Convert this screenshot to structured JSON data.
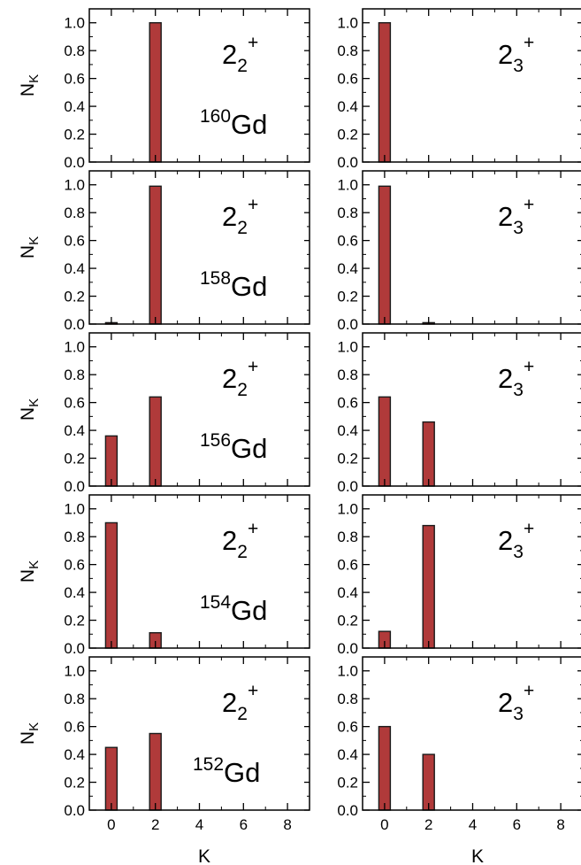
{
  "figure": {
    "ylabel_main": "N",
    "ylabel_sub": "K",
    "xlabel": "K"
  },
  "style": {
    "bar_color": "#b03a3a",
    "bar_stroke": "#1a1a1a"
  },
  "chart_data": [
    {
      "type": "bar",
      "row": 0,
      "col": 0,
      "state_main": "2",
      "state_sub": "2",
      "state_sup": "+",
      "nucleus_mass": "160",
      "nucleus_symbol": "Gd",
      "x": [
        0,
        2
      ],
      "values": [
        0.0,
        1.0
      ],
      "xlim": [
        -1,
        9
      ],
      "ylim": [
        0,
        1.1
      ],
      "xticks": [
        "0",
        "2",
        "4",
        "6",
        "8"
      ],
      "yticks": [
        "0.0",
        "0.2",
        "0.4",
        "0.6",
        "0.8",
        "1.0"
      ]
    },
    {
      "type": "bar",
      "row": 0,
      "col": 1,
      "state_main": "2",
      "state_sub": "3",
      "state_sup": "+",
      "nucleus_mass": "",
      "nucleus_symbol": "",
      "x": [
        0,
        2
      ],
      "values": [
        1.0,
        0.0
      ],
      "xlim": [
        -1,
        9
      ],
      "ylim": [
        0,
        1.1
      ],
      "xticks": [
        "0",
        "2",
        "4",
        "6",
        "8"
      ],
      "yticks": [
        "0.0",
        "0.2",
        "0.4",
        "0.6",
        "0.8",
        "1.0"
      ]
    },
    {
      "type": "bar",
      "row": 1,
      "col": 0,
      "state_main": "2",
      "state_sub": "2",
      "state_sup": "+",
      "nucleus_mass": "158",
      "nucleus_symbol": "Gd",
      "x": [
        0,
        2
      ],
      "values": [
        0.01,
        0.99
      ],
      "xlim": [
        -1,
        9
      ],
      "ylim": [
        0,
        1.1
      ],
      "xticks": [
        "0",
        "2",
        "4",
        "6",
        "8"
      ],
      "yticks": [
        "0.0",
        "0.2",
        "0.4",
        "0.6",
        "0.8",
        "1.0"
      ]
    },
    {
      "type": "bar",
      "row": 1,
      "col": 1,
      "state_main": "2",
      "state_sub": "3",
      "state_sup": "+",
      "nucleus_mass": "",
      "nucleus_symbol": "",
      "x": [
        0,
        2
      ],
      "values": [
        0.99,
        0.01
      ],
      "xlim": [
        -1,
        9
      ],
      "ylim": [
        0,
        1.1
      ],
      "xticks": [
        "0",
        "2",
        "4",
        "6",
        "8"
      ],
      "yticks": [
        "0.0",
        "0.2",
        "0.4",
        "0.6",
        "0.8",
        "1.0"
      ]
    },
    {
      "type": "bar",
      "row": 2,
      "col": 0,
      "state_main": "2",
      "state_sub": "2",
      "state_sup": "+",
      "nucleus_mass": "156",
      "nucleus_symbol": "Gd",
      "x": [
        0,
        2
      ],
      "values": [
        0.36,
        0.64
      ],
      "xlim": [
        -1,
        9
      ],
      "ylim": [
        0,
        1.1
      ],
      "xticks": [
        "0",
        "2",
        "4",
        "6",
        "8"
      ],
      "yticks": [
        "0.0",
        "0.2",
        "0.4",
        "0.6",
        "0.8",
        "1.0"
      ]
    },
    {
      "type": "bar",
      "row": 2,
      "col": 1,
      "state_main": "2",
      "state_sub": "3",
      "state_sup": "+",
      "nucleus_mass": "",
      "nucleus_symbol": "",
      "x": [
        0,
        2
      ],
      "values": [
        0.64,
        0.46
      ],
      "xlim": [
        -1,
        9
      ],
      "ylim": [
        0,
        1.1
      ],
      "xticks": [
        "0",
        "2",
        "4",
        "6",
        "8"
      ],
      "yticks": [
        "0.0",
        "0.2",
        "0.4",
        "0.6",
        "0.8",
        "1.0"
      ]
    },
    {
      "type": "bar",
      "row": 3,
      "col": 0,
      "state_main": "2",
      "state_sub": "2",
      "state_sup": "+",
      "nucleus_mass": "154",
      "nucleus_symbol": "Gd",
      "x": [
        0,
        2
      ],
      "values": [
        0.9,
        0.11
      ],
      "xlim": [
        -1,
        9
      ],
      "ylim": [
        0,
        1.1
      ],
      "xticks": [
        "0",
        "2",
        "4",
        "6",
        "8"
      ],
      "yticks": [
        "0.0",
        "0.2",
        "0.4",
        "0.6",
        "0.8",
        "1.0"
      ]
    },
    {
      "type": "bar",
      "row": 3,
      "col": 1,
      "state_main": "2",
      "state_sub": "3",
      "state_sup": "+",
      "nucleus_mass": "",
      "nucleus_symbol": "",
      "x": [
        0,
        2
      ],
      "values": [
        0.12,
        0.88
      ],
      "xlim": [
        -1,
        9
      ],
      "ylim": [
        0,
        1.1
      ],
      "xticks": [
        "0",
        "2",
        "4",
        "6",
        "8"
      ],
      "yticks": [
        "0.0",
        "0.2",
        "0.4",
        "0.6",
        "0.8",
        "1.0"
      ]
    },
    {
      "type": "bar",
      "row": 4,
      "col": 0,
      "state_main": "2",
      "state_sub": "2",
      "state_sup": "+",
      "nucleus_mass": "152",
      "nucleus_symbol": "Gd",
      "x": [
        0,
        2
      ],
      "values": [
        0.45,
        0.55
      ],
      "xlim": [
        -1,
        9
      ],
      "ylim": [
        0,
        1.1
      ],
      "xticks": [
        "0",
        "2",
        "4",
        "6",
        "8"
      ],
      "yticks": [
        "0.0",
        "0.2",
        "0.4",
        "0.6",
        "0.8",
        "1.0"
      ]
    },
    {
      "type": "bar",
      "row": 4,
      "col": 1,
      "state_main": "2",
      "state_sub": "3",
      "state_sup": "+",
      "nucleus_mass": "",
      "nucleus_symbol": "",
      "x": [
        0,
        2
      ],
      "values": [
        0.6,
        0.4
      ],
      "xlim": [
        -1,
        9
      ],
      "ylim": [
        0,
        1.1
      ],
      "xticks": [
        "0",
        "2",
        "4",
        "6",
        "8"
      ],
      "yticks": [
        "0.0",
        "0.2",
        "0.4",
        "0.6",
        "0.8",
        "1.0"
      ]
    }
  ]
}
